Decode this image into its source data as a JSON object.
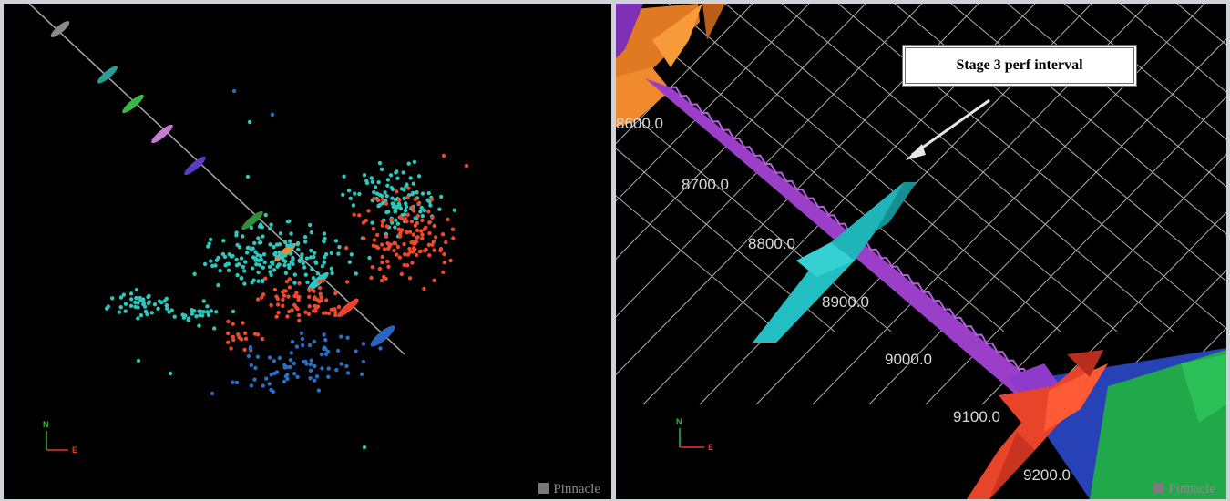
{
  "left_view": {
    "compass": {
      "north": "N",
      "east": "E"
    },
    "watermark": "Pinnacle",
    "colors": {
      "stage_a_events": "#2fc7bd",
      "stage_b_events": "#ee4a2a",
      "stage_c_events": "#2a6fc4",
      "wellbore": "#b0b0b0"
    }
  },
  "right_view": {
    "callout": "Stage 3 perf interval",
    "depth_labels": [
      "8600.0",
      "8700.0",
      "8800.0",
      "8900.0",
      "9000.0",
      "9100.0",
      "9200.0"
    ],
    "compass": {
      "north": "N",
      "east": "E"
    },
    "watermark": "Pinnacle",
    "colors": {
      "wellbore": "#9b3fc8",
      "stage_3_perf": "#2ec4c8",
      "stage_upper": "#f08a2c",
      "stage_lower": "#e8442a",
      "grid": "#d9d9d9"
    }
  }
}
